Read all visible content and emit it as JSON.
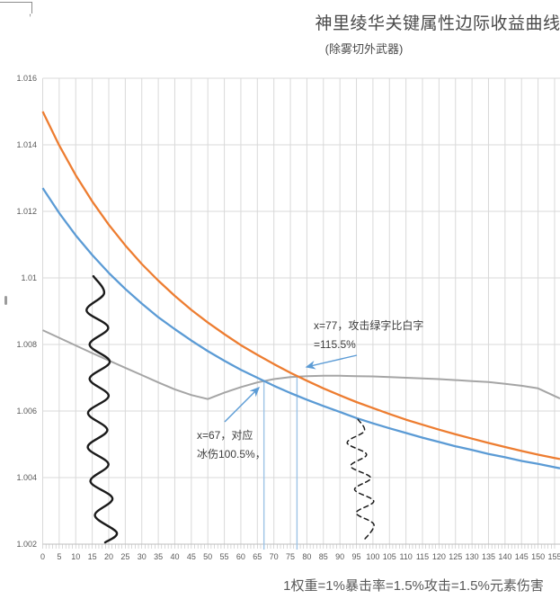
{
  "title": {
    "text": "神里绫华关键属性边际收益曲线",
    "subtitle": "(除雾切外武器)"
  },
  "decorations": {
    "top_tilde": "˘",
    "corner_comma": ","
  },
  "chart_data": {
    "type": "line",
    "title": "神里绫华关键属性边际收益曲线",
    "subtitle": "(除雾切外武器)",
    "xlabel": "1权重=1%暴击率=1.5%攻击=1.5%元素伤害",
    "ylabel": "",
    "xlim": [
      0,
      155
    ],
    "ylim": [
      1.002,
      1.016
    ],
    "x_tick_step": 5,
    "y_tick_step": 0.002,
    "grid": true,
    "legend_position": "none",
    "x": [
      0,
      5,
      10,
      15,
      20,
      25,
      30,
      35,
      40,
      45,
      50,
      55,
      60,
      65,
      70,
      75,
      80,
      85,
      90,
      95,
      100,
      105,
      110,
      115,
      120,
      125,
      130,
      135,
      140,
      145,
      150,
      155
    ],
    "series": [
      {
        "name": "series-gray",
        "color": "#A5A5A5",
        "values": [
          1.00843,
          1.0082,
          1.00797,
          1.00774,
          1.00752,
          1.0073,
          1.00708,
          1.00686,
          1.00665,
          1.00648,
          1.00636,
          1.00655,
          1.00672,
          1.00686,
          1.00696,
          1.00702,
          1.00705,
          1.00706,
          1.00706,
          1.00705,
          1.00704,
          1.00702,
          1.007,
          1.00698,
          1.00696,
          1.00693,
          1.0069,
          1.00687,
          1.00682,
          1.00676,
          1.00668,
          1.00645
        ]
      },
      {
        "name": "series-blue",
        "color": "#5B9BD5",
        "values": [
          1.0127,
          1.01195,
          1.01128,
          1.01069,
          1.01015,
          1.00967,
          1.00923,
          1.00882,
          1.00846,
          1.00812,
          1.0078,
          1.00751,
          1.00724,
          1.007,
          1.00676,
          1.00654,
          1.00634,
          1.00615,
          1.00597,
          1.00579,
          1.00563,
          1.00548,
          1.00534,
          1.0052,
          1.00507,
          1.00494,
          1.00483,
          1.00471,
          1.00461,
          1.0045,
          1.00441,
          1.00431
        ]
      },
      {
        "name": "series-orange",
        "color": "#ED7D31",
        "values": [
          1.015,
          1.01398,
          1.01309,
          1.0123,
          1.0116,
          1.01098,
          1.01042,
          1.00992,
          1.00946,
          1.00904,
          1.00866,
          1.00831,
          1.00798,
          1.00769,
          1.00741,
          1.00715,
          1.00691,
          1.00668,
          1.00647,
          1.00627,
          1.00609,
          1.00591,
          1.00574,
          1.00559,
          1.00544,
          1.0053,
          1.00517,
          1.00504,
          1.00492,
          1.0048,
          1.00469,
          1.00459
        ]
      }
    ],
    "x_tick_labels": [
      "0",
      "5",
      "10",
      "15",
      "20",
      "25",
      "30",
      "35",
      "40",
      "45",
      "50",
      "55",
      "60",
      "65",
      "70",
      "75",
      "80",
      "85",
      "90",
      "95",
      "100",
      "105",
      "110",
      "115",
      "120",
      "125",
      "130",
      "135",
      "140",
      "145",
      "150",
      "155"
    ],
    "y_tick_labels": [
      "1.016",
      "1.014",
      "1.012",
      "1.01",
      "1.008",
      "1.006",
      "1.004",
      "1.002"
    ],
    "y_tick_values": [
      1.016,
      1.014,
      1.012,
      1.01,
      1.008,
      1.006,
      1.004,
      1.002
    ],
    "annotations": [
      {
        "line1": "x=77，攻击绿字比白字",
        "line2": "=115.5%",
        "target_x": 77,
        "target_y": 1.00704
      },
      {
        "line1": "x=67，对应",
        "line2": "冰伤100.5%，",
        "target_x": 67,
        "target_y": 1.0069
      }
    ],
    "drop_lines": [
      {
        "x": 67,
        "from_y": 1.0069
      },
      {
        "x": 77,
        "from_y": 1.00704
      }
    ],
    "scribbles": [
      {
        "style": "solid",
        "x_center": 17,
        "y_top_value": 1.01005,
        "y_bottom_value": 1.00205
      },
      {
        "style": "dashed",
        "x_center": 96,
        "y_top_value": 1.00575,
        "y_bottom_value": 1.0021
      }
    ],
    "accent_colors": {
      "grid": "#D9D9D9",
      "axis": "#BFBFBF",
      "drop_line": "#9DC3E6",
      "arrow": "#5B9BD5",
      "scribble": "#1a1a1a"
    }
  }
}
